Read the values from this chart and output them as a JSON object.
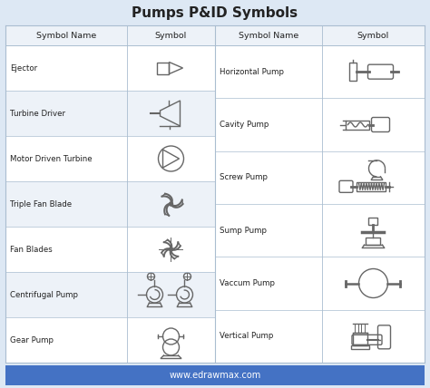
{
  "title": "Pumps P&ID Symbols",
  "title_fontsize": 11,
  "title_fontweight": "bold",
  "background_color": "#dde8f4",
  "table_bg": "#ffffff",
  "header_bg": "#edf2f8",
  "border_color": "#aabdd0",
  "text_color": "#222222",
  "footer_bg": "#4472c4",
  "footer_text": "www.edrawmax.com",
  "footer_text_color": "#ffffff",
  "col_header_left": "Symbol Name",
  "col_header_right": "Symbol",
  "left_rows": [
    "Ejector",
    "Turbine Driver",
    "Motor Driven Turbine",
    "Triple Fan Blade",
    "Fan Blades",
    "Centrifugal Pump",
    "Gear Pump"
  ],
  "right_rows": [
    "Horizontal Pump",
    "Cavity Pump",
    "Screw Pump",
    "Sump Pump",
    "Vaccum Pump",
    "Vertical Pump"
  ],
  "line_color": "#666666",
  "line_width": 1.0
}
